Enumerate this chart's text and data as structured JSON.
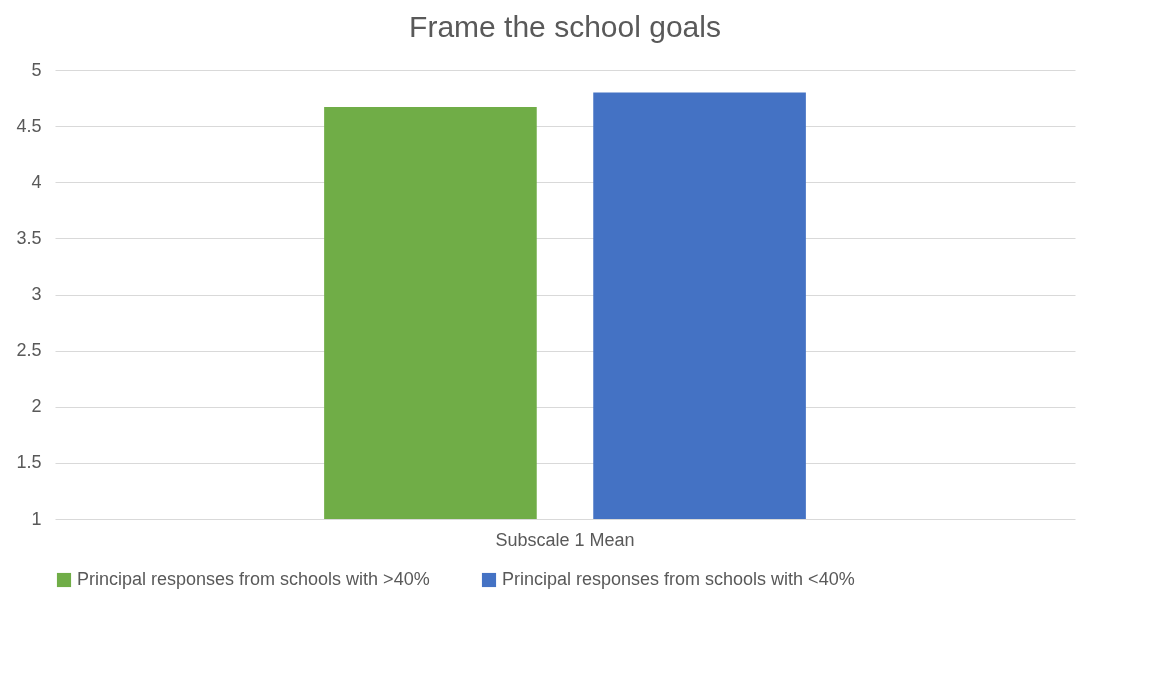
{
  "chart_data": {
    "type": "bar",
    "title": "Frame the school goals",
    "categories": [
      "Subscale 1 Mean"
    ],
    "series": [
      {
        "name": "Principal responses from schools with >40%",
        "color": "#70ad47",
        "values": [
          4.67
        ]
      },
      {
        "name": "Principal responses from schools with <40%",
        "color": "#4472c4",
        "values": [
          4.8
        ]
      }
    ],
    "ylim": [
      1,
      5
    ],
    "yticks": [
      1,
      1.5,
      2,
      2.5,
      3,
      3.5,
      4,
      4.5,
      5
    ],
    "grid": "y",
    "legend": "bottom"
  }
}
